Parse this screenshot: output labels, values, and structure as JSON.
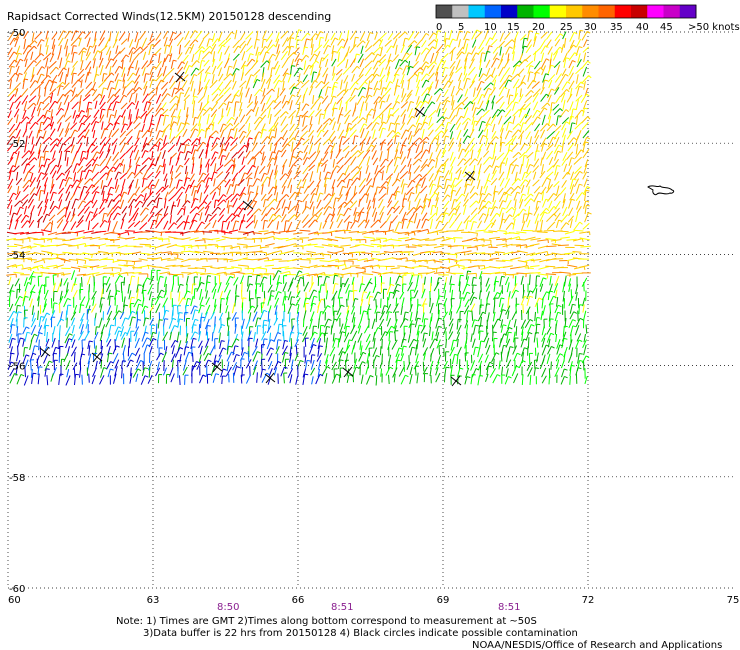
{
  "title": "Rapidsact Corrected Winds(12.5KM) 20150128 descending",
  "legend": {
    "colors": [
      "#505050",
      "#c0c0c0",
      "#00c8ff",
      "#0064ff",
      "#0000c8",
      "#00b400",
      "#00ff00",
      "#ffff00",
      "#ffc800",
      "#ff8c00",
      "#ff6400",
      "#ff0000",
      "#c80000",
      "#ff00ff",
      "#c800c8",
      "#6400c8"
    ],
    "labels": [
      "0",
      "5",
      "10",
      "15",
      "20",
      "25",
      "30",
      "35",
      "40",
      "45",
      ">50 knots"
    ]
  },
  "axes": {
    "x_ticks": [
      "60",
      "63",
      "66",
      "69",
      "72",
      "75"
    ],
    "y_ticks": [
      "-50",
      "-52",
      "-54",
      "-56",
      "-58",
      "-60"
    ]
  },
  "times": [
    "8:50",
    "8:51",
    "8:51"
  ],
  "notes": {
    "line1": "Note: 1) Times are GMT 2)Times along bottom correspond to measurement at ~50S",
    "line2": "3)Data buffer is 22 hrs from 20150128 4) Black circles indicate possible contamination",
    "credit": "NOAA/NESDIS/Office of Research and Applications"
  },
  "map": {
    "lon_range": [
      60,
      75
    ],
    "lat_range": [
      -60,
      -50
    ],
    "swath_east_lon": 72,
    "swath_south_lat_west": -56.4,
    "swath_south_lat_east": -56.8
  }
}
